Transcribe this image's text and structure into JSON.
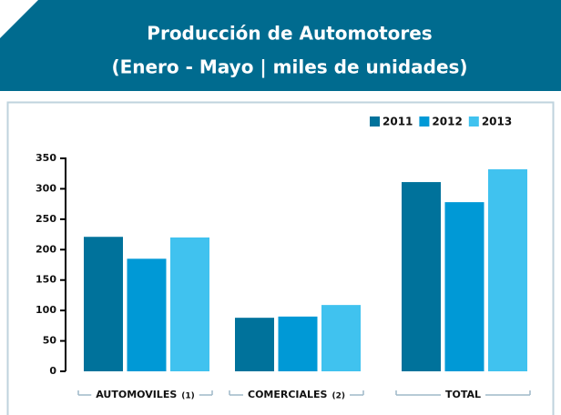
{
  "chart_data": {
    "type": "bar",
    "title": "Producción de Automotores",
    "subtitle": "(Enero - Mayo | miles de unidades)",
    "categories": [
      "AUTOMOVILES",
      "COMERCIALES",
      "TOTAL"
    ],
    "category_notes": [
      "(1)",
      "(2)",
      null
    ],
    "series": [
      {
        "name": "2011",
        "color": "#00729b",
        "values": [
          221,
          88,
          311
        ]
      },
      {
        "name": "2012",
        "color": "#0099d6",
        "values": [
          185,
          90,
          278
        ]
      },
      {
        "name": "2013",
        "color": "#40c2ef",
        "values": [
          220,
          109,
          332
        ]
      }
    ],
    "ylim": [
      0,
      350
    ],
    "yticks": [
      0,
      50,
      100,
      150,
      200,
      250,
      300,
      350
    ],
    "legend": "top-right"
  }
}
